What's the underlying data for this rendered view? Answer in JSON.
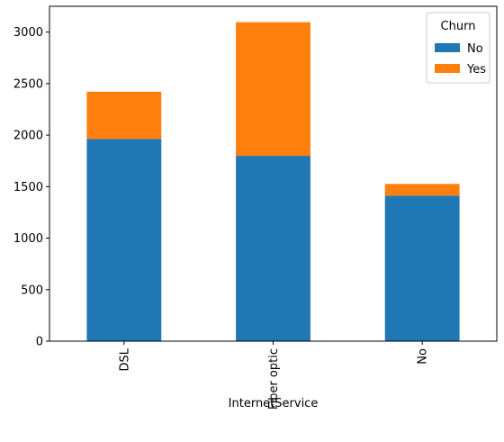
{
  "chart_data": {
    "type": "bar",
    "stacked": true,
    "title": "",
    "xlabel": "InternetService",
    "ylabel": "",
    "categories": [
      "DSL",
      "Fiber optic",
      "No"
    ],
    "series": [
      {
        "name": "No",
        "color": "#1f77b4",
        "values": [
          1962,
          1799,
          1413
        ]
      },
      {
        "name": "Yes",
        "color": "#ff7f0e",
        "values": [
          459,
          1297,
          113
        ]
      }
    ],
    "ylim": [
      0,
      3250
    ],
    "yticks": [
      0,
      500,
      1000,
      1500,
      2000,
      2500,
      3000
    ],
    "grid": false,
    "legend": {
      "title": "Churn",
      "placement": "top-right"
    }
  }
}
